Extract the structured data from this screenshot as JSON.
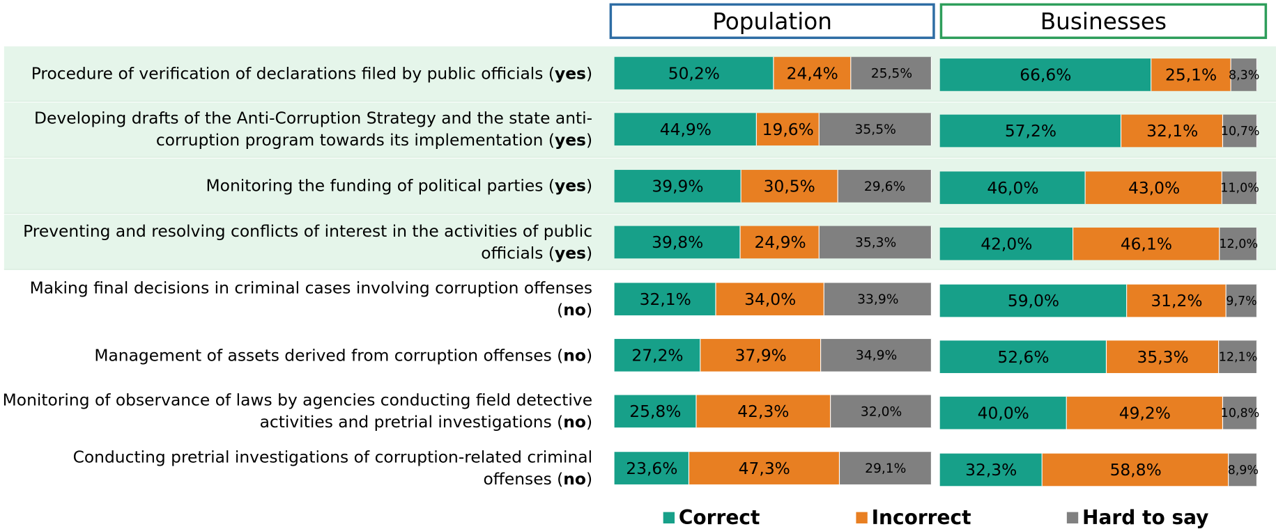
{
  "chart_data": {
    "type": "stacked-bar",
    "xlim": [
      0,
      100
    ],
    "categories": [
      "Procedure of verification of declarations filed by public officials (yes)",
      "Developing drafts of the Anti-Corruption Strategy and the state anti-corruption program towards its implementation (yes)",
      "Monitoring the funding of political parties (yes)",
      "Preventing and resolving conflicts of interest in the activities of public officials (yes)",
      "Making final decisions in criminal cases involving corruption offenses (no)",
      "Management of assets derived from corruption offenses (no)",
      "Monitoring of observance of laws by agencies conducting field detective activities and pretrial investigations (no)",
      "Conducting pretrial investigations of corruption-related criminal offenses (no)"
    ],
    "legend": [
      {
        "name": "Correct",
        "color": "#17a089"
      },
      {
        "name": "Incorrect",
        "color": "#e87f22"
      },
      {
        "name": "Hard to say",
        "color": "#808080"
      }
    ],
    "panels": [
      {
        "title": "Population",
        "border": "#2e6da4",
        "series": [
          {
            "values": [
              50.2,
              44.9,
              39.9,
              39.8,
              32.1,
              27.2,
              25.8,
              23.6
            ],
            "value_labels": [
              "50,2%",
              "44,9%",
              "39,9%",
              "39,8%",
              "32,1%",
              "27,2%",
              "25,8%",
              "23,6%"
            ]
          },
          {
            "values": [
              24.4,
              19.6,
              30.5,
              24.9,
              34.0,
              37.9,
              42.3,
              47.3
            ],
            "value_labels": [
              "24,4%",
              "19,6%",
              "30,5%",
              "24,9%",
              "34,0%",
              "37,9%",
              "42,3%",
              "47,3%"
            ]
          },
          {
            "values": [
              25.5,
              35.5,
              29.6,
              35.3,
              33.9,
              34.9,
              32.0,
              29.1
            ],
            "value_labels": [
              "25,5%",
              "35,5%",
              "29,6%",
              "35,3%",
              "33,9%",
              "34,9%",
              "32,0%",
              "29,1%"
            ]
          }
        ]
      },
      {
        "title": "Businesses",
        "border": "#2e9e5b",
        "series": [
          {
            "values": [
              66.6,
              57.2,
              46.0,
              42.0,
              59.0,
              52.6,
              40.0,
              32.3
            ],
            "value_labels": [
              "66,6%",
              "57,2%",
              "46,0%",
              "42,0%",
              "59,0%",
              "52,6%",
              "40,0%",
              "32,3%"
            ]
          },
          {
            "values": [
              25.1,
              32.1,
              43.0,
              46.1,
              31.2,
              35.3,
              49.2,
              58.8
            ],
            "value_labels": [
              "25,1%",
              "32,1%",
              "43,0%",
              "46,1%",
              "31,2%",
              "35,3%",
              "49,2%",
              "58,8%"
            ]
          },
          {
            "values": [
              8.3,
              10.7,
              11.0,
              12.0,
              9.7,
              12.1,
              10.8,
              8.9
            ],
            "value_labels": [
              "8,3%",
              "10,7%",
              "11,0%",
              "12,0%",
              "9,7%",
              "12,1%",
              "10,8%",
              "8,9%"
            ]
          }
        ]
      }
    ]
  }
}
